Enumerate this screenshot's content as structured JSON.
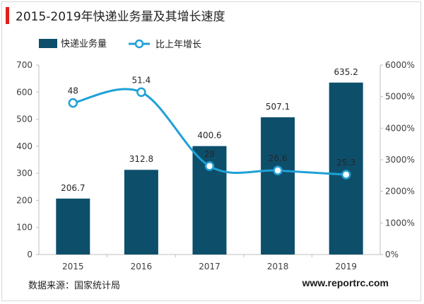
{
  "header": {
    "title": "2015-2019年快递业务量及其增长速度"
  },
  "colors": {
    "bar": "#0d4f6b",
    "line": "#1fa0d6",
    "accent": "#e0201c"
  },
  "chart_data": {
    "type": "bar",
    "categories": [
      "2015",
      "2016",
      "2017",
      "2018",
      "2019"
    ],
    "series": [
      {
        "name": "快递业务量",
        "type": "bar",
        "axis": "left",
        "values": [
          206.7,
          312.8,
          400.6,
          507.1,
          635.2
        ]
      },
      {
        "name": "比上年增长",
        "type": "line",
        "axis": "right",
        "values": [
          48,
          51.4,
          28,
          26.6,
          25.3
        ],
        "smooth": true
      }
    ],
    "y_left": {
      "min": 0,
      "max": 700,
      "ticks": [
        "0",
        "100",
        "200",
        "300",
        "400",
        "500",
        "600",
        "700"
      ]
    },
    "y_right": {
      "min": 0,
      "max": 6000,
      "ticks": [
        "0%",
        "1000%",
        "2000%",
        "3000%",
        "4000%",
        "5000%",
        "6000%"
      ]
    },
    "legend_position": "top-left",
    "grid": false
  },
  "footer": {
    "source": "数据来源：国家统计局",
    "website": "www.reportrc.com"
  }
}
